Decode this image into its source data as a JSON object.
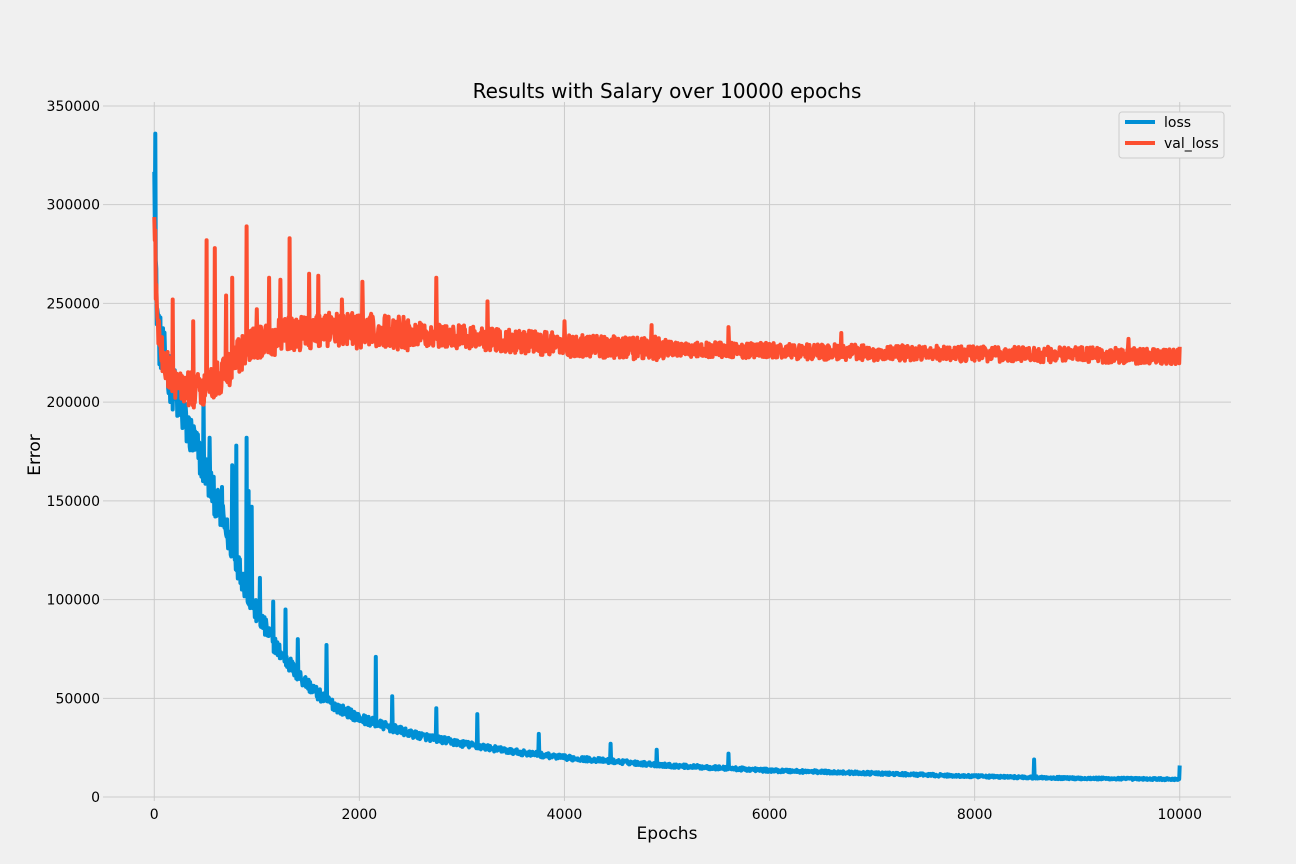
{
  "chart_data": {
    "type": "line",
    "title": "Results with Salary over 10000 epochs",
    "xlabel": "Epochs",
    "ylabel": "Error",
    "xlim": [
      -500,
      10500
    ],
    "ylim": [
      -2000,
      352000
    ],
    "xticks": [
      0,
      2000,
      4000,
      6000,
      8000,
      10000
    ],
    "yticks": [
      0,
      50000,
      100000,
      150000,
      200000,
      250000,
      300000,
      350000
    ],
    "grid": true,
    "legend_position": "top-right",
    "colors": {
      "background": "#f0f0f0",
      "grid": "#cbcbcb",
      "loss": "#008fd5",
      "val_loss": "#fc4f30"
    },
    "series": [
      {
        "name": "loss",
        "color": "#008fd5",
        "x": [
          0,
          10,
          20,
          50,
          100,
          200,
          300,
          400,
          500,
          600,
          700,
          800,
          900,
          1000,
          1200,
          1400,
          1600,
          1800,
          2000,
          2500,
          3000,
          3500,
          4000,
          5000,
          6000,
          7000,
          8000,
          9000,
          10000
        ],
        "y": [
          336000,
          280000,
          255000,
          232000,
          222000,
          205000,
          190000,
          178000,
          165000,
          150000,
          135000,
          120000,
          105000,
          93000,
          75000,
          62000,
          52000,
          45000,
          40000,
          32000,
          27000,
          23000,
          20000,
          16000,
          13500,
          12000,
          10500,
          9500,
          9000
        ],
        "spikes": [
          {
            "x": 10,
            "y": 336000
          },
          {
            "x": 480,
            "y": 205000
          },
          {
            "x": 540,
            "y": 182000
          },
          {
            "x": 660,
            "y": 157000
          },
          {
            "x": 760,
            "y": 168000
          },
          {
            "x": 800,
            "y": 178000
          },
          {
            "x": 900,
            "y": 182000
          },
          {
            "x": 920,
            "y": 155000
          },
          {
            "x": 950,
            "y": 147000
          },
          {
            "x": 1030,
            "y": 111000
          },
          {
            "x": 1160,
            "y": 99000
          },
          {
            "x": 1280,
            "y": 95000
          },
          {
            "x": 1400,
            "y": 80000
          },
          {
            "x": 1680,
            "y": 77000
          },
          {
            "x": 2160,
            "y": 71000
          },
          {
            "x": 2320,
            "y": 51000
          },
          {
            "x": 2750,
            "y": 45000
          },
          {
            "x": 3150,
            "y": 42000
          },
          {
            "x": 3750,
            "y": 32000
          },
          {
            "x": 4450,
            "y": 27000
          },
          {
            "x": 4900,
            "y": 24000
          },
          {
            "x": 5600,
            "y": 22000
          },
          {
            "x": 8580,
            "y": 19000
          },
          {
            "x": 10000,
            "y": 16000
          }
        ]
      },
      {
        "name": "val_loss",
        "color": "#fc4f30",
        "x": [
          0,
          10,
          50,
          100,
          150,
          200,
          300,
          400,
          500,
          600,
          700,
          800,
          900,
          1000,
          1200,
          1400,
          1600,
          1800,
          2000,
          2500,
          3000,
          3500,
          4000,
          5000,
          6000,
          7000,
          8000,
          9000,
          10000
        ],
        "y": [
          287000,
          262000,
          228000,
          220000,
          215000,
          211000,
          207000,
          206000,
          208000,
          211000,
          215000,
          222000,
          228000,
          230000,
          233000,
          235000,
          237000,
          237000,
          236000,
          235000,
          233000,
          231000,
          229000,
          227000,
          226000,
          225000,
          224500,
          224000,
          223000
        ],
        "spikes": [
          {
            "x": 10,
            "y": 287000
          },
          {
            "x": 180,
            "y": 252000
          },
          {
            "x": 380,
            "y": 241000
          },
          {
            "x": 510,
            "y": 282000
          },
          {
            "x": 590,
            "y": 278000
          },
          {
            "x": 700,
            "y": 254000
          },
          {
            "x": 760,
            "y": 263000
          },
          {
            "x": 900,
            "y": 289000
          },
          {
            "x": 1000,
            "y": 247000
          },
          {
            "x": 1120,
            "y": 263000
          },
          {
            "x": 1230,
            "y": 262000
          },
          {
            "x": 1320,
            "y": 283000
          },
          {
            "x": 1510,
            "y": 265000
          },
          {
            "x": 1600,
            "y": 264000
          },
          {
            "x": 1830,
            "y": 252000
          },
          {
            "x": 2030,
            "y": 261000
          },
          {
            "x": 2750,
            "y": 263000
          },
          {
            "x": 3250,
            "y": 251000
          },
          {
            "x": 4000,
            "y": 241000
          },
          {
            "x": 4850,
            "y": 239000
          },
          {
            "x": 5600,
            "y": 238000
          },
          {
            "x": 6700,
            "y": 235000
          },
          {
            "x": 9500,
            "y": 232000
          },
          {
            "x": 10000,
            "y": 228000
          }
        ]
      }
    ]
  }
}
